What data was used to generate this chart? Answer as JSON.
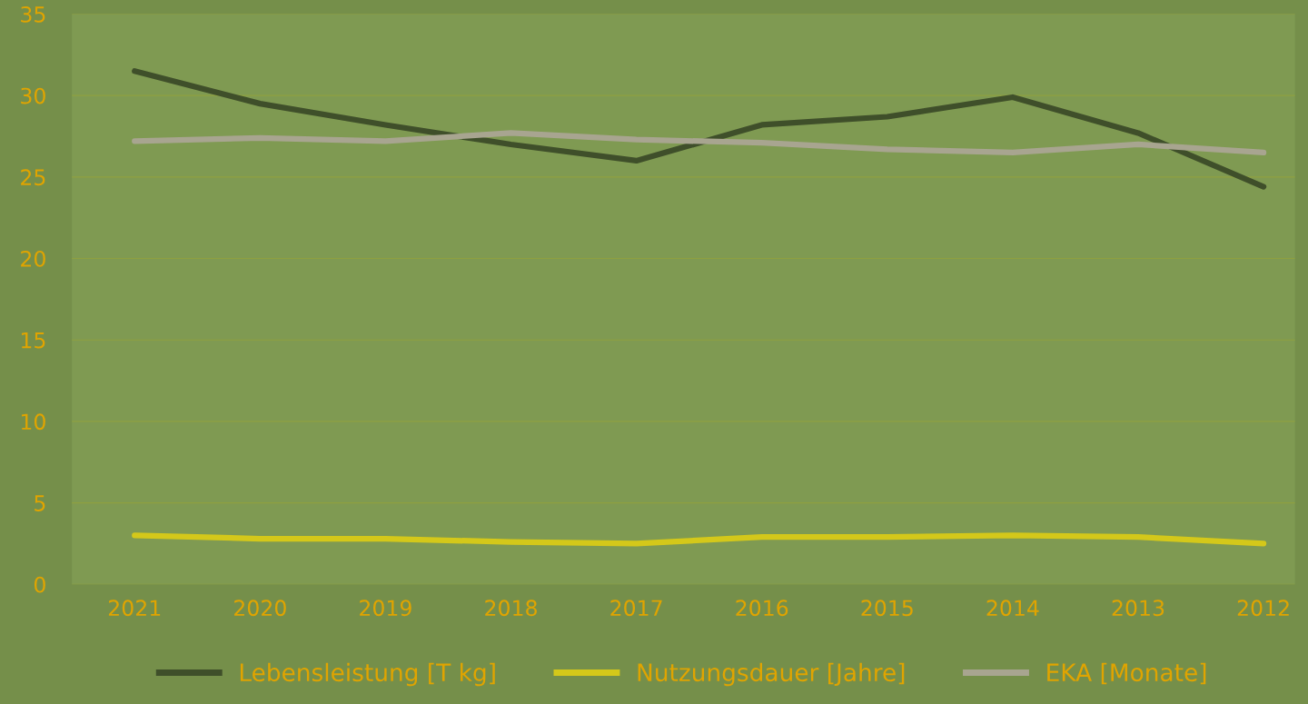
{
  "chart_data": {
    "type": "line",
    "categories": [
      "2021",
      "2020",
      "2019",
      "2018",
      "2017",
      "2016",
      "2015",
      "2014",
      "2013",
      "2012"
    ],
    "series": [
      {
        "name": "Lebensleistung [T kg]",
        "color": "#3f4f2a",
        "values": [
          31.5,
          29.5,
          28.2,
          27.0,
          26.0,
          28.2,
          28.7,
          29.9,
          27.7,
          24.4
        ]
      },
      {
        "name": "Nutzungsdauer [Jahre]",
        "color": "#d4c81a",
        "values": [
          3.0,
          2.8,
          2.8,
          2.6,
          2.5,
          2.9,
          2.9,
          3.0,
          2.9,
          2.5
        ]
      },
      {
        "name": "EKA [Monate]",
        "color": "#a8a590",
        "values": [
          27.2,
          27.4,
          27.2,
          27.7,
          27.3,
          27.1,
          26.7,
          26.5,
          27.0,
          26.5
        ]
      }
    ],
    "ylim": [
      0,
      35
    ],
    "yticks": [
      0,
      5,
      10,
      15,
      20,
      25,
      30,
      35
    ],
    "grid": "y",
    "legend": "bottom",
    "marker": "none",
    "line_style": "solid"
  }
}
